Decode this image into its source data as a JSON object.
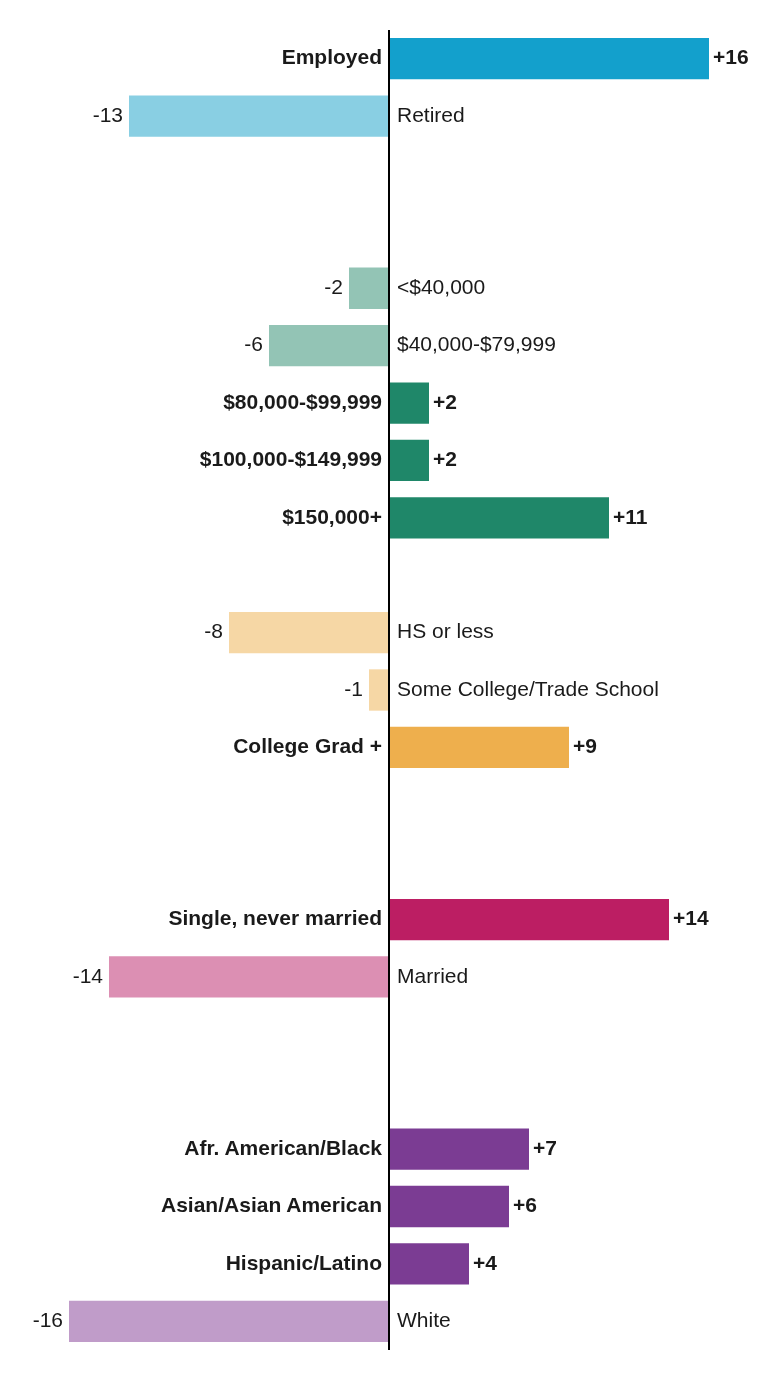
{
  "chart_data": {
    "type": "bar",
    "orientation": "horizontal",
    "categories": [
      "Employed",
      "Retired",
      null,
      null,
      "<$40,000",
      "$40,000-$79,999",
      "$80,000-$99,999",
      "$100,000-$149,999",
      "$150,000+",
      null,
      "HS or less",
      "Some College/Trade School",
      "College Grad +",
      null,
      null,
      "Single, never married",
      "Married",
      null,
      null,
      "Afr. American/Black",
      "Asian/Asian American",
      "Hispanic/Latino",
      "White"
    ],
    "values": [
      16,
      -13,
      null,
      null,
      -2,
      -6,
      2,
      2,
      11,
      null,
      -8,
      -1,
      9,
      null,
      null,
      14,
      -14,
      null,
      null,
      7,
      6,
      4,
      -16
    ],
    "value_labels": [
      "+16",
      "-13",
      null,
      null,
      "-2",
      "-6",
      "+2",
      "+2",
      "+11",
      null,
      "-8",
      "-1",
      "+9",
      null,
      null,
      "+14",
      "-14",
      null,
      null,
      "+7",
      "+6",
      "+4",
      "-16"
    ],
    "colors": [
      "#13a0cc",
      "#89cfe3",
      null,
      null,
      "#93c4b5",
      "#93c4b5",
      "#1f8769",
      "#1f8769",
      "#1f8769",
      null,
      "#f6d7a5",
      "#f6d7a5",
      "#eeaf4d",
      null,
      null,
      "#bc1e63",
      "#dc8fb3",
      null,
      null,
      "#7b3c93",
      "#7b3c93",
      "#7b3c93",
      "#c09cc9"
    ],
    "tick_labels": false
  }
}
